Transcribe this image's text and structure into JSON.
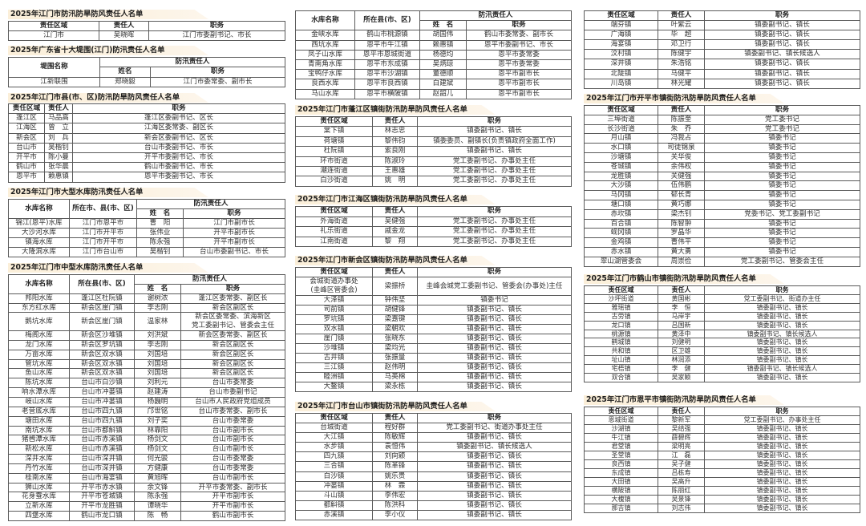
{
  "sections": [
    {
      "title": "2025年江门市防汛防旱防风责任人名单",
      "headers": [
        "责任区域",
        "责任人",
        "职务"
      ],
      "rows": [
        [
          "江门市",
          "吴晓晖",
          "江门市委副书记、市长"
        ]
      ]
    },
    {
      "title": "2025年广东省十大堤围(江门)防汛责任人名单",
      "group": "防汛责任人",
      "headers": [
        "堤围名称",
        "姓名",
        "职务"
      ],
      "rows": [
        [
          "江新联围",
          "郑晓毅",
          "江门市委常委、副市长"
        ]
      ]
    },
    {
      "title": "2025年江门市县(市、区)防汛防旱防风责任人名单",
      "headers": [
        "责任区域",
        "责任人",
        "职务"
      ],
      "rows": [
        [
          "蓬江区",
          "马品高",
          "蓬江区委副书记、区长"
        ],
        [
          "江海区",
          "曾　立",
          "江海区委常委、副区长"
        ],
        [
          "新会区",
          "刘　兵",
          "新会区委副书记、区长"
        ],
        [
          "台山市",
          "吴楷钊",
          "台山市委副书记、市长"
        ],
        [
          "开平市",
          "陈小曼",
          "开平市委副书记、市长"
        ],
        [
          "鹤山市",
          "张华晨",
          "鹤山市委副书记、市长"
        ],
        [
          "恩平市",
          "赖惠镇",
          "恩平市委副书记、市长"
        ]
      ]
    },
    {
      "title": "2025年江门市大型水库防汛责任人名单",
      "group": "防汛责任人",
      "headers": [
        "水库名称",
        "所在市、县(市、区)",
        "姓　名",
        "职务"
      ],
      "rows": [
        [
          "锦江(恩平)水库",
          "江门市恩平市",
          "曹　阳",
          "江门市副市长"
        ],
        [
          "大沙河水库",
          "江门市开平市",
          "张伟业",
          "开平市副市长"
        ],
        [
          "镇海水库",
          "江门市开平市",
          "陈永强",
          "开平市副市长"
        ],
        [
          "大隆洞水库",
          "江门市台山市",
          "吴楷钊",
          "台山市委副书记、市长"
        ]
      ]
    },
    {
      "title": "2025年江门市中型水库防汛责任人名单",
      "group": "防汛责任人",
      "headers": [
        "水库名称",
        "所在县(市、区)",
        "姓　名",
        "职务"
      ],
      "rows": [
        [
          "邦阳水库",
          "蓬江区杜阮镇",
          "谢树浓",
          "蓬江区委常委、副区长"
        ],
        [
          "东方红水库",
          "新会区崖门镇",
          "李志刚",
          "新会区副区长"
        ],
        [
          "鹅坑水库",
          "新会区崖门镇",
          "温家林",
          "新会区委常委、滨海新区\n党工委副书记、管委会主任"
        ],
        [
          "梅阁水库",
          "新会区沙堆镇",
          "刘洪斌",
          "新会区委常委、副区长"
        ],
        [
          "龙门水库",
          "新会区罗坑镇",
          "李志刚",
          "新会区副区长"
        ],
        [
          "万亩水库",
          "新会区双水镇",
          "刘国培",
          "新会区副区长"
        ],
        [
          "管坑水库",
          "新会区双水镇",
          "刘国培",
          "新会区副区长"
        ],
        [
          "鱼山水库",
          "新会区双水镇",
          "刘国培",
          "新会区副区长"
        ],
        [
          "陈坑水库",
          "台山市白沙镇",
          "刘利元",
          "台山市委常委"
        ],
        [
          "响水潭水库",
          "台山市冲蒌镇",
          "赵建涛",
          "台山市委副书记"
        ],
        [
          "岐山水库",
          "台山市冲蒌镇",
          "杨巍明",
          "台山市人民政府党组成员"
        ],
        [
          "老营底水库",
          "台山市四九镇",
          "邝世铭",
          "台山市委常委、副市长"
        ],
        [
          "塘田水库",
          "台山市四九镇",
          "刘子奕",
          "台山市委常委"
        ],
        [
          "南坑水库",
          "台山市都斛镇",
          "林靠阳",
          "台山市副市长"
        ],
        [
          "猪乸潭水库",
          "台山市赤溪镇",
          "杨剑文",
          "台山市副市长"
        ],
        [
          "新松水库",
          "台山市赤溪镇",
          "杨剑文",
          "台山市副市长"
        ],
        [
          "深井水库",
          "台山市深井镇",
          "何光骏",
          "台山市委常委"
        ],
        [
          "丹竹水库",
          "台山市深井镇",
          "方健康",
          "台山市委常委"
        ],
        [
          "桂南水库",
          "台山市海宴镇",
          "黄旭晖",
          "台山市副市长"
        ],
        [
          "狮山水库",
          "开平市赤水镇",
          "余文锋",
          "开平市委常委、副市长"
        ],
        [
          "花身蚕水库",
          "开平市苍城镇",
          "陈永强",
          "开平市副市长"
        ],
        [
          "立新水库",
          "开平市龙胜镇",
          "谭晓华",
          "开平市副市长"
        ],
        [
          "四堡水库",
          "鹤山市龙口镇",
          "陈　畅",
          "鹤山市副市长"
        ]
      ]
    },
    {
      "group": "防汛责任人",
      "headers": [
        "水库名称",
        "所在县(市、区)",
        "姓　名",
        "职务"
      ],
      "rows": [
        [
          "金峡水库",
          "鹤山市桃源镇",
          "胡国伟",
          "鹤山市委常委、副市长"
        ],
        [
          "西坑水库",
          "恩平市牛江镇",
          "赖惠镇",
          "恩平市委副书记、市长"
        ],
        [
          "凤子山水库",
          "恩平市恩城街道",
          "杨德均",
          "恩平市委常委"
        ],
        [
          "青南角水库",
          "恩平市东成镇",
          "吴炳琼",
          "恩平市委常委"
        ],
        [
          "宝鸭仔水库",
          "恩平市沙湖镇",
          "董德顺",
          "恩平市副市长"
        ],
        [
          "良西水库",
          "恩平市良西镇",
          "白建斌",
          "恩平市副市长"
        ],
        [
          "马山水库",
          "恩平市横陂镇",
          "赵韶儿",
          "恩平市副市长"
        ]
      ]
    },
    {
      "title": "2025年江门市蓬江区镇街防汛防旱防风责任人名单",
      "headers": [
        "责任区域",
        "责任人",
        "职务"
      ],
      "rows": [
        [
          "棠下镇",
          "林志忠",
          "镇委副书记、镇长"
        ],
        [
          "荷塘镇",
          "黎伟钧",
          "镇委委员、副镇长(负责镇政府全面工作)"
        ],
        [
          "杜阮镇",
          "索良刚",
          "镇委副书记、镇长"
        ],
        [
          "环市街道",
          "陈淑玲",
          "党工委副书记、办事处主任"
        ],
        [
          "潮连街道",
          "王惠雄",
          "党工委副书记、办事处主任"
        ],
        [
          "白沙街道",
          "姚　明",
          "党工委副书记、办事处主任"
        ]
      ]
    },
    {
      "title": "2025年江门市江海区镇街防汛防旱防风责任人名单",
      "headers": [
        "责任区域",
        "责任人",
        "职务"
      ],
      "rows": [
        [
          "外海街道",
          "吴健强",
          "党工委副书记、办事处主任"
        ],
        [
          "礼乐街道",
          "戚金龙",
          "党工委副书记、办事处主任"
        ],
        [
          "江南街道",
          "黎　翔",
          "党工委副书记、办事处主任"
        ]
      ]
    },
    {
      "title": "2025年江门市新会区镇街防汛防旱防风责任人名单",
      "headers": [
        "责任区域",
        "责任人",
        "职务"
      ],
      "rows": [
        [
          "会城街道办事处\n(圭峰区管委会)",
          "梁振桥",
          "圭峰会城党工委副书记、管委会(办事处)主任"
        ],
        [
          "大泽镇",
          "钟伟坚",
          "镇委书记"
        ],
        [
          "司前镇",
          "胡健锋",
          "镇委副书记、镇长"
        ],
        [
          "罗坑镇",
          "梁嘉键",
          "镇委副书记、镇长"
        ],
        [
          "双水镇",
          "梁朝欢",
          "镇委副书记、镇长"
        ],
        [
          "崖门镇",
          "张晓东",
          "镇委副书记、镇长"
        ],
        [
          "沙堆镇",
          "梁均光",
          "镇委副书记、镇长"
        ],
        [
          "古井镇",
          "张振量",
          "镇委副书记、镇长"
        ],
        [
          "三江镇",
          "赵伟明",
          "镇委副书记、镇长"
        ],
        [
          "睦洲镇",
          "马英棉",
          "镇委副书记、镇长"
        ],
        [
          "大鳌镇",
          "梁永栋",
          "镇委副书记、镇长"
        ]
      ]
    },
    {
      "title": "2025年江门市台山市镇街防汛防旱防风责任人名单",
      "headers": [
        "责任区域",
        "责任人",
        "职务"
      ],
      "rows": [
        [
          "台城街道",
          "程好群",
          "党工委副书记、街道办事处主任"
        ],
        [
          "大江镇",
          "陈敏辉",
          "镇委副书记、镇长"
        ],
        [
          "水步镇",
          "袁恒伟",
          "镇委副书记、镇长候选人"
        ],
        [
          "四九镇",
          "刘向颖",
          "镇委副书记、镇长"
        ],
        [
          "三合镇",
          "陈革锋",
          "镇委副书记、镇长"
        ],
        [
          "白沙镇",
          "姚乐贵",
          "镇委副书记、镇长"
        ],
        [
          "冲蒌镇",
          "林　霖",
          "镇委副书记、镇长"
        ],
        [
          "斗山镇",
          "李伟宏",
          "镇委副书记、镇长"
        ],
        [
          "都斛镇",
          "陈洪科",
          "镇委副书记、镇长"
        ],
        [
          "赤溪镇",
          "李小仪",
          "镇委副书记、镇长"
        ]
      ]
    },
    {
      "headers": [
        "责任区域",
        "责任人",
        "职务"
      ],
      "rows": [
        [
          "端芬镇",
          "叶紫云",
          "镇委副书记、镇长"
        ],
        [
          "广海镇",
          "毕　超",
          "镇委副书记、镇长"
        ],
        [
          "海宴镇",
          "邓卫行",
          "镇委副书记、镇长"
        ],
        [
          "汶村镇",
          "陈健宇",
          "镇委副书记、镇长候选人"
        ],
        [
          "深井镇",
          "朱浩铭",
          "镇委副书记、镇长"
        ],
        [
          "北陡镇",
          "马健平",
          "镇委副书记、镇长"
        ],
        [
          "川岛镇",
          "林光耀",
          "镇委副书记、镇长"
        ]
      ]
    },
    {
      "title": "2025年江门市开平市镇街防汛防旱防风责任人名单",
      "headers": [
        "责任区域",
        "责任人",
        "职务"
      ],
      "rows": [
        [
          "三埠街道",
          "陈振奎",
          "党工委书记"
        ],
        [
          "长沙街道",
          "朱　乔",
          "党工委书记"
        ],
        [
          "月山镇",
          "冯我占",
          "镇委书记"
        ],
        [
          "水口镇",
          "司徒锦泉",
          "镇委书记"
        ],
        [
          "沙塘镇",
          "关华俊",
          "镇委书记"
        ],
        [
          "苍城镇",
          "余伟权",
          "镇委书记"
        ],
        [
          "龙胜镇",
          "关健强",
          "镇委书记"
        ],
        [
          "大沙镇",
          "伍伟鹏",
          "镇委书记"
        ],
        [
          "马冈镇",
          "郁长青",
          "镇委书记"
        ],
        [
          "塘口镇",
          "黄巧娜",
          "镇委书记"
        ],
        [
          "赤坎镇",
          "梁杰钊",
          "党委书记、党工委副书记"
        ],
        [
          "百合镇",
          "陈智翀",
          "镇委书记"
        ],
        [
          "蚬冈镇",
          "罗晶华",
          "镇委书记"
        ],
        [
          "金鸡镇",
          "曹伟平",
          "镇委书记"
        ],
        [
          "赤水镇",
          "黄大勇",
          "镇委书记"
        ],
        [
          "翠山湖管委会",
          "周崇俭",
          "党工委副书记、管委会主任"
        ]
      ]
    },
    {
      "title": "2025年江门市鹤山市镇街防汛防旱防风责任人名单",
      "headers": [
        "责任区域",
        "责任人",
        "职务"
      ],
      "rows": [
        [
          "沙坪街道",
          "黄国彬",
          "党工委副书记、街道办主任"
        ],
        [
          "雅瑶镇",
          "李　恒",
          "镇委副书记、镇长"
        ],
        [
          "古劳镇",
          "马岸宇",
          "镇委副书记、镇长"
        ],
        [
          "龙口镇",
          "吕国新",
          "镇委副书记、镇长"
        ],
        [
          "桃源镇",
          "黄泽中",
          "镇委副书记、镇长候选人"
        ],
        [
          "鹤城镇",
          "刘健明",
          "镇委副书记、镇长"
        ],
        [
          "共和镇",
          "区卫雄",
          "镇委副书记、镇长"
        ],
        [
          "址山镇",
          "林润添",
          "镇委副书记、镇长"
        ],
        [
          "宅梧镇",
          "李　健",
          "镇委副书记、镇长候选人"
        ],
        [
          "双合镇",
          "吴家颖",
          "镇委副书记、镇长"
        ]
      ]
    },
    {
      "title": "2025年江门市恩平市镇街防汛防旱防风责任人名单",
      "headers": [
        "责任区域",
        "责任人",
        "职务"
      ],
      "rows": [
        [
          "恩城街道",
          "黎新军",
          "党工委副书记、办事处主任"
        ],
        [
          "沙湖镇",
          "吴结强",
          "镇委副书记、镇长"
        ],
        [
          "牛江镇",
          "薛碧辉",
          "镇委副书记、镇长"
        ],
        [
          "君堂镇",
          "梁明亮",
          "镇委副书记、镇长"
        ],
        [
          "圣堂镇",
          "江　磊",
          "镇委副书记、镇长"
        ],
        [
          "良西镇",
          "吴子健",
          "镇委副书记、镇长"
        ],
        [
          "东成镇",
          "吕栋寿",
          "镇委副书记、镇长"
        ],
        [
          "大田镇",
          "吴高升",
          "镇委副书记、镇长"
        ],
        [
          "横陂镇",
          "陈丽红",
          "镇委副书记、镇长"
        ],
        [
          "大槐镇",
          "吴景锋",
          "镇委副书记、镇长"
        ],
        [
          "那吉镇",
          "刘志伟",
          "镇委副书记、镇长"
        ]
      ]
    }
  ]
}
